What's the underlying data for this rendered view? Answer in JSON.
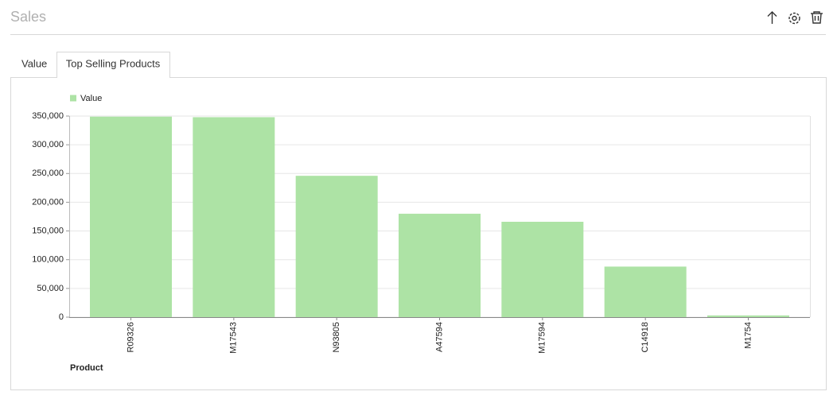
{
  "header": {
    "title": "Sales"
  },
  "tabs": [
    "Value",
    "Top Selling Products"
  ],
  "chart_data": {
    "type": "bar",
    "categories": [
      "R09326",
      "M17543",
      "N93805",
      "A47594",
      "M17594",
      "C14918",
      "M1754"
    ],
    "series": [
      {
        "name": "Value",
        "color": "#ade3a5",
        "values": [
          349000,
          348000,
          246000,
          180000,
          166000,
          88000,
          3000
        ]
      }
    ],
    "ylim": [
      0,
      350000
    ],
    "yticks": [
      0,
      {
        "value": 50000,
        "label": "50,000"
      },
      {
        "value": 100000,
        "label": "100,000"
      },
      {
        "value": 150000,
        "label": "150,000"
      },
      {
        "value": 200000,
        "label": "200,000"
      },
      {
        "value": 250000,
        "label": "250,000"
      },
      {
        "value": 300000,
        "label": "300,000"
      },
      {
        "value": 350000,
        "label": "350,000"
      }
    ],
    "xlabel": "Product",
    "grid": true
  }
}
